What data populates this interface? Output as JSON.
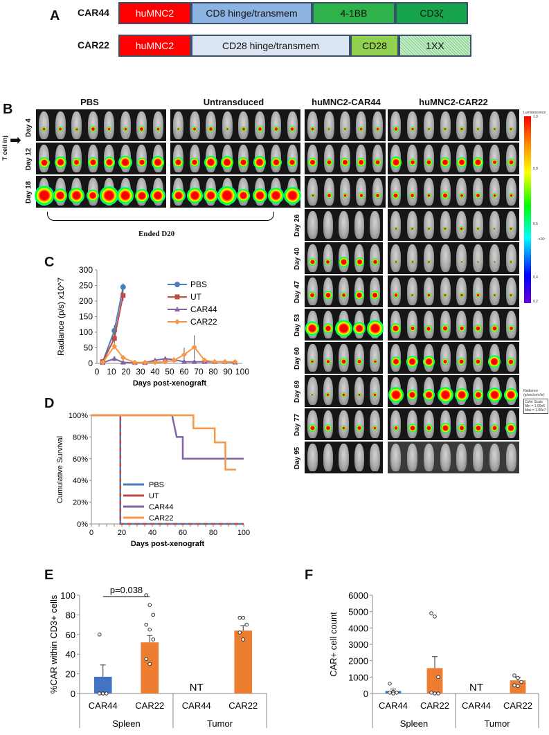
{
  "panel_labels": {
    "a": "A",
    "b": "B",
    "c": "C",
    "d": "D",
    "e": "E",
    "f": "F"
  },
  "panel_a": {
    "constructs": [
      {
        "name": "CAR44",
        "segments": [
          {
            "label": "huMNC2",
            "color": "#ff0000",
            "text_color": "#ffffff"
          },
          {
            "label": "CD8 hinge/transmem",
            "color": "#8db3e2",
            "text_color": "#111111"
          },
          {
            "label": "4-1BB",
            "color": "#2db34a",
            "text_color": "#111111"
          },
          {
            "label": "CD3ζ",
            "color": "#16a54a",
            "text_color": "#111111"
          }
        ]
      },
      {
        "name": "CAR22",
        "segments": [
          {
            "label": "huMNC2",
            "color": "#ff0000",
            "text_color": "#ffffff"
          },
          {
            "label": "CD28 hinge/transmem",
            "color": "#dbe5f1",
            "text_color": "#111111"
          },
          {
            "label": "CD28",
            "color": "#92d050",
            "text_color": "#111111"
          },
          {
            "label": "1XX",
            "color": "#c6efce",
            "text_color": "#111111"
          }
        ]
      }
    ]
  },
  "panel_b": {
    "groups": [
      "PBS",
      "Untransduced",
      "huMNC2-CAR44",
      "huMNC2-CAR22"
    ],
    "arrow_label": "T cell inj",
    "days_early": [
      "Day 4",
      "Day 12",
      "Day 18"
    ],
    "days_late": [
      "Day 26",
      "Day 40",
      "Day 47",
      "Day 53",
      "Day 60",
      "Day 69",
      "Day 77",
      "Day 95"
    ],
    "ended_label": "Ended D20",
    "scale": {
      "title": "Luminescence",
      "ticks": [
        "1.0",
        "0.8",
        "0.6",
        "0.4",
        "0.2"
      ],
      "exponent": "x10⁷",
      "unit": "Radiance (p/sec/cm²/sr)",
      "color_scale": "Color Scale",
      "min": "Min = 1.00e6",
      "max": "Max = 1.00e7"
    }
  },
  "chart_data": [
    {
      "id": "C",
      "type": "line",
      "xlabel": "Days post-xenograft",
      "ylabel": "Radiance (p/s) x10^7",
      "xlim": [
        0,
        100
      ],
      "ylim": [
        0,
        300
      ],
      "xticks": [
        0,
        10,
        20,
        30,
        40,
        50,
        60,
        70,
        80,
        90,
        100
      ],
      "yticks": [
        0,
        50,
        100,
        150,
        200,
        250,
        300
      ],
      "series": [
        {
          "name": "PBS",
          "color": "#4a7ebb",
          "marker": "circle",
          "x": [
            4,
            12,
            18
          ],
          "y": [
            5,
            105,
            245
          ],
          "err": [
            2,
            18,
            12
          ]
        },
        {
          "name": "UT",
          "color": "#be4b48",
          "marker": "square",
          "x": [
            4,
            12,
            18
          ],
          "y": [
            5,
            80,
            218
          ],
          "err": [
            2,
            15,
            18
          ]
        },
        {
          "name": "CAR44",
          "color": "#7f63a3",
          "marker": "triangle",
          "x": [
            4,
            12,
            18,
            26,
            33,
            40,
            47,
            53,
            60,
            67,
            74,
            81,
            88,
            95
          ],
          "y": [
            2,
            15,
            3,
            2,
            2,
            10,
            15,
            12,
            5,
            5,
            5,
            5,
            5,
            3
          ],
          "err": [
            1,
            8,
            2,
            1,
            1,
            5,
            6,
            5,
            3,
            3,
            3,
            3,
            3,
            2
          ]
        },
        {
          "name": "CAR22",
          "color": "#f79646",
          "marker": "diamond",
          "x": [
            4,
            12,
            18,
            26,
            33,
            40,
            47,
            53,
            60,
            67,
            74,
            81,
            88,
            95
          ],
          "y": [
            3,
            55,
            18,
            3,
            3,
            3,
            5,
            10,
            28,
            52,
            10,
            5,
            5,
            5
          ],
          "err": [
            2,
            10,
            5,
            2,
            2,
            2,
            3,
            8,
            22,
            38,
            8,
            8,
            8,
            3
          ]
        }
      ]
    },
    {
      "id": "D",
      "type": "line",
      "xlabel": "Days post-xenograft",
      "ylabel": "Cumulative Survival",
      "xlim": [
        0,
        100
      ],
      "ylim": [
        0,
        100
      ],
      "xticks": [
        0,
        20,
        40,
        60,
        80,
        100
      ],
      "yticks": [
        "0%",
        "20%",
        "40%",
        "60%",
        "80%",
        "100%"
      ],
      "series": [
        {
          "name": "PBS",
          "color": "#4a7ebb",
          "steps": [
            [
              0,
              100
            ],
            [
              19,
              100
            ],
            [
              19,
              0
            ],
            [
              100,
              0
            ]
          ]
        },
        {
          "name": "UT",
          "color": "#be4b48",
          "steps": [
            [
              0,
              100
            ],
            [
              19,
              100
            ],
            [
              19,
              0
            ],
            [
              100,
              0
            ]
          ]
        },
        {
          "name": "CAR44",
          "color": "#8064a2",
          "steps": [
            [
              0,
              100
            ],
            [
              53,
              100
            ],
            [
              56,
              80
            ],
            [
              60,
              80
            ],
            [
              60,
              60
            ],
            [
              100,
              60
            ]
          ]
        },
        {
          "name": "CAR22",
          "color": "#f79646",
          "steps": [
            [
              0,
              100
            ],
            [
              67,
              100
            ],
            [
              67,
              88
            ],
            [
              81,
              88
            ],
            [
              81,
              75
            ],
            [
              88,
              75
            ],
            [
              88,
              50
            ],
            [
              95,
              50
            ]
          ]
        }
      ]
    },
    {
      "id": "E",
      "type": "bar",
      "ylabel": "%CAR within CD3+ cells",
      "ylim": [
        0,
        100
      ],
      "yticks": [
        0,
        20,
        40,
        60,
        80,
        100
      ],
      "categories": [
        "CAR44",
        "CAR22",
        "CAR44",
        "CAR22"
      ],
      "groups": [
        "Spleen",
        "Tumor"
      ],
      "values": [
        17,
        52,
        null,
        64
      ],
      "errors": [
        12,
        7,
        null,
        5
      ],
      "colors": [
        "#4472c4",
        "#ed7d31",
        "#4472c4",
        "#ed7d31"
      ],
      "points": [
        [
          60,
          0,
          0,
          0,
          0
        ],
        [
          100,
          90,
          80,
          70,
          65,
          55,
          35,
          30
        ],
        [],
        [
          77,
          77,
          70,
          62,
          55
        ]
      ],
      "annotations": [
        {
          "text": "p=0.038"
        },
        {
          "text": "NT"
        }
      ]
    },
    {
      "id": "F",
      "type": "bar",
      "ylabel": "CAR+ cell count",
      "ylim": [
        0,
        6000
      ],
      "yticks": [
        0,
        1000,
        2000,
        3000,
        4000,
        5000,
        6000
      ],
      "categories": [
        "CAR44",
        "CAR22",
        "CAR44",
        "CAR22"
      ],
      "groups": [
        "Spleen",
        "Tumor"
      ],
      "values": [
        150,
        1550,
        null,
        800
      ],
      "errors": [
        120,
        700,
        null,
        180
      ],
      "colors": [
        "#4472c4",
        "#ed7d31",
        "#4472c4",
        "#ed7d31"
      ],
      "points": [
        [
          600,
          100,
          50,
          50,
          0
        ],
        [
          4900,
          4700,
          1000,
          50,
          0,
          0
        ],
        [],
        [
          1100,
          950,
          700,
          500,
          450
        ]
      ],
      "annotations": [
        {
          "text": "NT"
        }
      ]
    }
  ]
}
